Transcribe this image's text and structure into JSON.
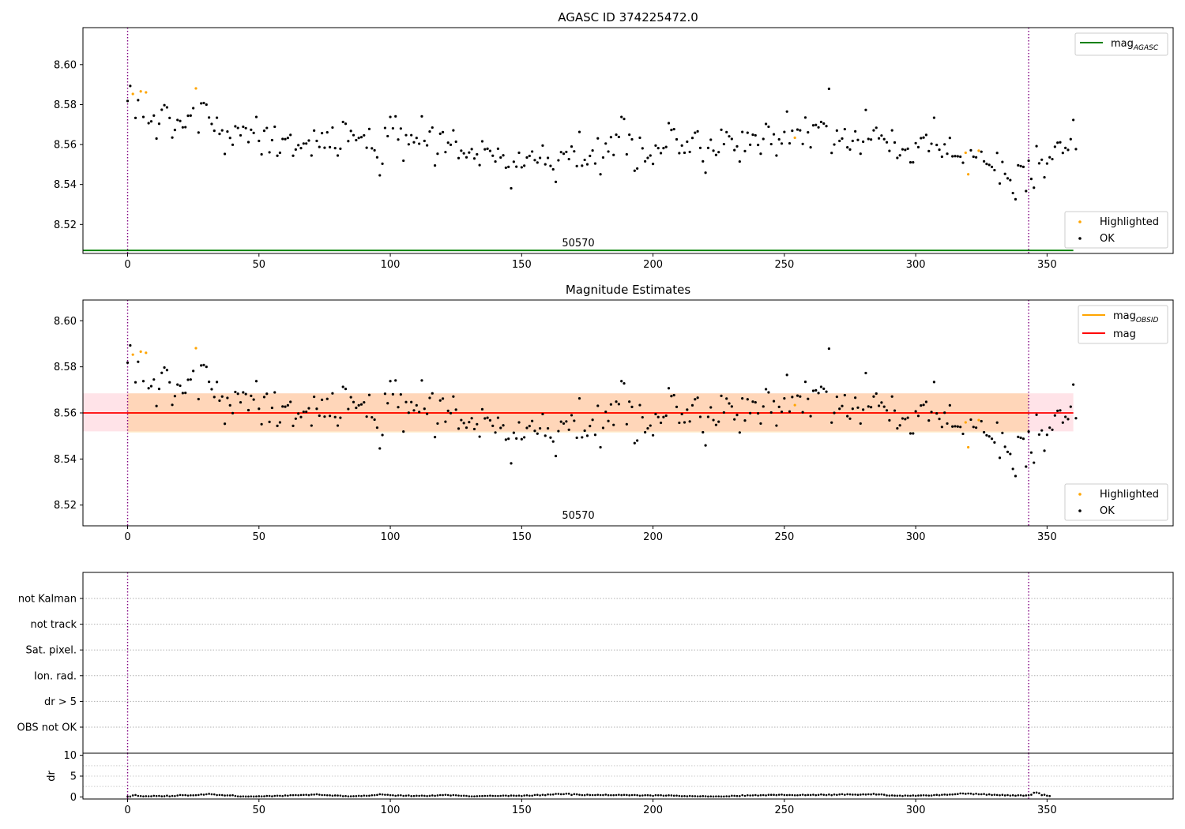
{
  "chart_data": [
    {
      "id": "agasc",
      "type": "scatter",
      "title": "AGASC ID 374225472.0",
      "xlabel": "",
      "ylabel": "",
      "xlim": [
        -17,
        398
      ],
      "ylim": [
        8.5055,
        8.6185
      ],
      "x_ticks": [
        0,
        50,
        100,
        150,
        200,
        250,
        300,
        350
      ],
      "y_ticks": [
        8.52,
        8.54,
        8.56,
        8.58,
        8.6
      ],
      "y_tick_labels": [
        "8.52",
        "8.54",
        "8.56",
        "8.58",
        "8.60"
      ],
      "obsid_label": "50570",
      "obsid_label_x": 171,
      "vlines": [
        0,
        343
      ],
      "hline": {
        "name": "mag_AGASC",
        "value": 8.507,
        "x_range": [
          -17,
          360
        ],
        "color": "#008000"
      },
      "legend_lines": [
        {
          "label": "mag",
          "sub": "AGASC",
          "color": "#008000"
        }
      ],
      "legend_points": [
        {
          "label": "Highlighted",
          "color": "#ffa500"
        },
        {
          "label": "OK",
          "color": "#000000"
        }
      ]
    },
    {
      "id": "estimates",
      "type": "scatter",
      "title": "Magnitude Estimates",
      "xlabel": "",
      "ylabel": "",
      "xlim": [
        -17,
        398
      ],
      "ylim": [
        8.511,
        8.609
      ],
      "x_ticks": [
        0,
        50,
        100,
        150,
        200,
        250,
        300,
        350
      ],
      "y_ticks": [
        8.52,
        8.54,
        8.56,
        8.58,
        8.6
      ],
      "y_tick_labels": [
        "8.52",
        "8.54",
        "8.56",
        "8.58",
        "8.60"
      ],
      "obsid_label": "50570",
      "obsid_label_x": 171,
      "vlines": [
        0,
        343
      ],
      "mag": {
        "value": 8.56,
        "x_range": [
          -17,
          360
        ],
        "color": "#ff0000",
        "band": [
          8.552,
          8.5685
        ],
        "band_color": "#ffc0cb"
      },
      "mag_obsid": {
        "value": 8.56,
        "x_range": [
          0,
          343
        ],
        "band": [
          8.5515,
          8.5685
        ],
        "band_color": "#ffa500"
      },
      "legend_lines": [
        {
          "label": "mag",
          "sub": "OBSID",
          "color": "#ffa500"
        },
        {
          "label": "mag",
          "sub": "",
          "color": "#ff0000"
        }
      ],
      "legend_points": [
        {
          "label": "Highlighted",
          "color": "#ffa500"
        },
        {
          "label": "OK",
          "color": "#000000"
        }
      ]
    },
    {
      "id": "flags",
      "type": "scatter",
      "xlim": [
        -17,
        398
      ],
      "categories": [
        "not Kalman",
        "not track",
        "Sat. pixel.",
        "Ion. rad.",
        "dr > 5",
        "OBS not OK"
      ],
      "vlines": [
        0,
        343
      ]
    },
    {
      "id": "dr",
      "type": "scatter",
      "ylabel": "dr",
      "xlim": [
        -17,
        398
      ],
      "ylim": [
        -0.5,
        10.5
      ],
      "x_ticks": [
        0,
        50,
        100,
        150,
        200,
        250,
        300,
        350
      ],
      "y_ticks": [
        0,
        5,
        10
      ],
      "vlines": [
        0,
        343
      ]
    }
  ],
  "samples": {
    "count": 344,
    "highlighted_indices": [
      2,
      5,
      7,
      26,
      254,
      319,
      320,
      324
    ],
    "mag_values": [
      8.5818,
      8.5893,
      8.5853,
      8.5733,
      8.5822,
      8.5866,
      8.5738,
      8.5861,
      8.5707,
      8.5716,
      8.5745,
      8.563,
      8.5704,
      8.5774,
      8.5797,
      8.5786,
      8.5733,
      8.5635,
      8.5673,
      8.5723,
      8.5718,
      8.5686,
      8.5687,
      8.5744,
      8.5745,
      8.5782,
      8.5881,
      8.566,
      8.5806,
      8.5808,
      8.58,
      8.5735,
      8.5703,
      8.5669,
      8.5734,
      8.5653,
      8.5671,
      8.5553,
      8.5665,
      8.5633,
      8.5599,
      8.5691,
      8.5683,
      8.5646,
      8.5689,
      8.5682,
      8.5612,
      8.5674,
      8.5658,
      8.5738,
      8.5618,
      8.5551,
      8.5669,
      8.5683,
      8.5561,
      8.5622,
      8.5689,
      8.5544,
      8.5559,
      8.5628,
      8.5627,
      8.5633,
      8.5648,
      8.5544,
      8.5575,
      8.5597,
      8.5582,
      8.5605,
      8.5605,
      8.562,
      8.5545,
      8.567,
      8.5618,
      8.5588,
      8.5657,
      8.5584,
      8.5661,
      8.5587,
      8.5685,
      8.5582,
      8.5545,
      8.5579,
      8.5713,
      8.5704,
      8.5617,
      8.5668,
      8.5647,
      8.5622,
      8.5633,
      8.5637,
      8.5646,
      8.5584,
      8.5678,
      8.5581,
      8.5571,
      8.5536,
      8.5446,
      8.5504,
      8.5683,
      8.5642,
      8.5738,
      8.5681,
      8.5741,
      8.5625,
      8.568,
      8.5519,
      8.5647,
      8.5601,
      8.5647,
      8.5611,
      8.5633,
      8.5604,
      8.5741,
      8.5618,
      8.5596,
      8.5665,
      8.5685,
      8.5495,
      8.5554,
      8.5654,
      8.5662,
      8.5562,
      8.5609,
      8.5599,
      8.5671,
      8.5614,
      8.5532,
      8.5569,
      8.5556,
      8.5536,
      8.556,
      8.5577,
      8.553,
      8.5551,
      8.5497,
      8.5616,
      8.5576,
      8.5579,
      8.5568,
      8.5544,
      8.5515,
      8.5579,
      8.5535,
      8.5546,
      8.5484,
      8.5488,
      8.5381,
      8.5514,
      8.5489,
      8.5559,
      8.5486,
      8.5494,
      8.5535,
      8.5543,
      8.5565,
      8.5522,
      8.551,
      8.5533,
      8.5595,
      8.5501,
      8.5533,
      8.5493,
      8.5476,
      8.5413,
      8.5521,
      8.5562,
      8.5554,
      8.5563,
      8.5527,
      8.559,
      8.5566,
      8.5492,
      8.5663,
      8.5494,
      8.5523,
      8.5501,
      8.5543,
      8.557,
      8.5505,
      8.5631,
      8.5451,
      8.5535,
      8.5605,
      8.5565,
      8.5637,
      8.5548,
      8.5649,
      8.5638,
      8.5738,
      8.5728,
      8.5551,
      8.5649,
      8.5626,
      8.5469,
      8.548,
      8.5634,
      8.5581,
      8.5516,
      8.5533,
      8.5545,
      8.5503,
      8.5595,
      8.5582,
      8.5557,
      8.5582,
      8.5588,
      8.5707,
      8.5673,
      8.5677,
      8.5626,
      8.5557,
      8.5595,
      8.5559,
      8.5614,
      8.5563,
      8.5633,
      8.5659,
      8.5666,
      8.5583,
      8.5516,
      8.5459,
      8.5583,
      8.5624,
      8.5569,
      8.5548,
      8.5562,
      8.5674,
      8.5602,
      8.5662,
      8.5641,
      8.5628,
      8.5572,
      8.5591,
      8.5515,
      8.5663,
      8.5567,
      8.5659,
      8.5599,
      8.5649,
      8.5646,
      8.5598,
      8.5554,
      8.5628,
      8.5703,
      8.5689,
      8.5602,
      8.5651,
      8.5545,
      8.5626,
      8.5605,
      8.5663,
      8.5765,
      8.5606,
      8.5669,
      8.5634,
      8.5675,
      8.5671,
      8.5603,
      8.5735,
      8.5661,
      8.5586,
      8.5696,
      8.5698,
      8.5686,
      8.5713,
      8.5705,
      8.5692,
      8.5879,
      8.5558,
      8.56,
      8.567,
      8.5618,
      8.563,
      8.5677,
      8.5586,
      8.5575,
      8.5618,
      8.5666,
      8.5623,
      8.5554,
      8.5614,
      8.5773,
      8.5628,
      8.5625,
      8.5671,
      8.5684,
      8.5631,
      8.5645,
      8.5627,
      8.5611,
      8.5568,
      8.5671,
      8.561,
      8.5533,
      8.5546,
      8.5576,
      8.5573,
      8.5579,
      8.5511,
      8.5511,
      8.5607,
      8.5587,
      8.5632,
      8.5635,
      8.5648,
      8.5567,
      8.5604,
      8.5734,
      8.5598,
      8.5574,
      8.5539,
      8.5601,
      8.5554,
      8.5633,
      8.5541,
      8.5542,
      8.5541,
      8.5539,
      8.5509,
      8.5559,
      8.5451,
      8.5571,
      8.5539,
      8.5536,
      8.5569,
      8.5564,
      8.5516,
      8.5503,
      8.5498,
      8.5488,
      8.5472,
      8.5558,
      8.5405,
      8.5513,
      8.5453,
      8.5431,
      8.5422,
      8.5357,
      8.5326,
      8.5496,
      8.5492,
      8.5488,
      8.5367,
      8.5519,
      8.5428,
      8.5384,
      8.5592,
      8.5506,
      8.5524,
      8.5436,
      8.5505,
      8.5536,
      8.5527,
      8.5589,
      8.5609,
      8.5611,
      8.5558,
      8.5583,
      8.5573,
      8.5627,
      8.5723,
      8.5577
    ],
    "dr_values": [
      0.1,
      0.1,
      0.36,
      0.47,
      0.25,
      0.21,
      0.13,
      0.18,
      0.16,
      0.16,
      0.28,
      0.22,
      0.25,
      0.15,
      0.17,
      0.31,
      0.14,
      0.24,
      0.2,
      0.35,
      0.47,
      0.42,
      0.43,
      0.33,
      0.38,
      0.38,
      0.42,
      0.47,
      0.6,
      0.54,
      0.64,
      0.74,
      0.63,
      0.61,
      0.44,
      0.47,
      0.44,
      0.34,
      0.37,
      0.36,
      0.41,
      0.24,
      0.13,
      0.1,
      0.13,
      0.1,
      0.1,
      0.13,
      0.1,
      0.12,
      0.17,
      0.13,
      0.16,
      0.24,
      0.24,
      0.15,
      0.25,
      0.3,
      0.28,
      0.21,
      0.36,
      0.3,
      0.42,
      0.42,
      0.44,
      0.4,
      0.46,
      0.48,
      0.51,
      0.43,
      0.55,
      0.56,
      0.65,
      0.54,
      0.45,
      0.45,
      0.4,
      0.38,
      0.3,
      0.36,
      0.34,
      0.32,
      0.18,
      0.22,
      0.13,
      0.16,
      0.18,
      0.19,
      0.28,
      0.2,
      0.33,
      0.28,
      0.29,
      0.39,
      0.42,
      0.48,
      0.65,
      0.58,
      0.52,
      0.52,
      0.42,
      0.4,
      0.28,
      0.37,
      0.39,
      0.25,
      0.3,
      0.36,
      0.19,
      0.23,
      0.29,
      0.26,
      0.32,
      0.27,
      0.2,
      0.27,
      0.36,
      0.27,
      0.36,
      0.45,
      0.43,
      0.51,
      0.45,
      0.34,
      0.44,
      0.4,
      0.33,
      0.28,
      0.3,
      0.26,
      0.16,
      0.14,
      0.14,
      0.18,
      0.21,
      0.22,
      0.26,
      0.25,
      0.31,
      0.25,
      0.24,
      0.23,
      0.26,
      0.32,
      0.32,
      0.22,
      0.34,
      0.31,
      0.27,
      0.32,
      0.2,
      0.34,
      0.39,
      0.3,
      0.3,
      0.47,
      0.5,
      0.37,
      0.51,
      0.42,
      0.6,
      0.56,
      0.58,
      0.73,
      0.73,
      0.65,
      0.66,
      0.77,
      0.76,
      0.48,
      0.67,
      0.62,
      0.52,
      0.44,
      0.42,
      0.55,
      0.46,
      0.45,
      0.45,
      0.51,
      0.45,
      0.44,
      0.55,
      0.42,
      0.42,
      0.42,
      0.45,
      0.51,
      0.43,
      0.49,
      0.47,
      0.38,
      0.45,
      0.47,
      0.42,
      0.3,
      0.35,
      0.41,
      0.41,
      0.37,
      0.26,
      0.42,
      0.39,
      0.41,
      0.3,
      0.32,
      0.38,
      0.36,
      0.29,
      0.32,
      0.24,
      0.17,
      0.2,
      0.15,
      0.24,
      0.18,
      0.18,
      0.14,
      0.15,
      0.19,
      0.16,
      0.1,
      0.14,
      0.1,
      0.14,
      0.14,
      0.1,
      0.11,
      0.16,
      0.13,
      0.29,
      0.27,
      0.22,
      0.19,
      0.42,
      0.26,
      0.4,
      0.35,
      0.37,
      0.44,
      0.33,
      0.41,
      0.45,
      0.37,
      0.5,
      0.5,
      0.5,
      0.43,
      0.52,
      0.56,
      0.46,
      0.44,
      0.47,
      0.45,
      0.39,
      0.4,
      0.45,
      0.54,
      0.42,
      0.48,
      0.46,
      0.54,
      0.42,
      0.49,
      0.6,
      0.51,
      0.44,
      0.57,
      0.42,
      0.58,
      0.49,
      0.6,
      0.66,
      0.52,
      0.65,
      0.61,
      0.55,
      0.56,
      0.5,
      0.55,
      0.62,
      0.57,
      0.64,
      0.6,
      0.74,
      0.57,
      0.6,
      0.61,
      0.53,
      0.36,
      0.32,
      0.37,
      0.31,
      0.29,
      0.33,
      0.21,
      0.35,
      0.3,
      0.28,
      0.36,
      0.27,
      0.34,
      0.36,
      0.4,
      0.37,
      0.33,
      0.34,
      0.45,
      0.5,
      0.4,
      0.51,
      0.57,
      0.51,
      0.57,
      0.58,
      0.65,
      0.69,
      0.84,
      0.83,
      0.74,
      0.82,
      0.79,
      0.63,
      0.77,
      0.64,
      0.64,
      0.7,
      0.52,
      0.62,
      0.46,
      0.53,
      0.47,
      0.4,
      0.5,
      0.36,
      0.45,
      0.32,
      0.41,
      0.29,
      0.39,
      0.4,
      0.29,
      0.36,
      0.41,
      0.53,
      1.0,
      1.05,
      0.9,
      0.43,
      0.53,
      0.3,
      0.22
    ]
  }
}
